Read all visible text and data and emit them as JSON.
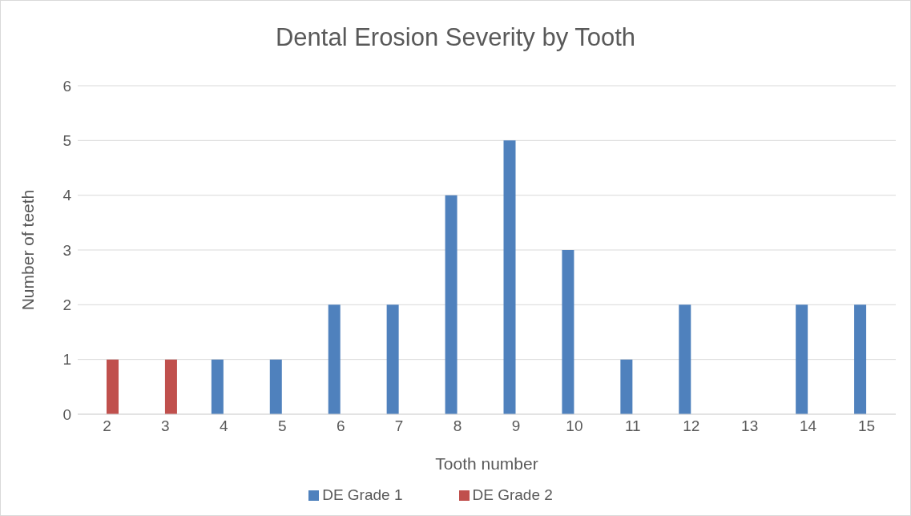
{
  "chart_data": {
    "type": "bar",
    "title": "Dental Erosion Severity by Tooth",
    "xlabel": "Tooth number",
    "ylabel": "Number of teeth",
    "categories": [
      "2",
      "3",
      "4",
      "5",
      "6",
      "7",
      "8",
      "9",
      "10",
      "11",
      "12",
      "13",
      "14",
      "15"
    ],
    "series": [
      {
        "name": "DE Grade 1",
        "color": "#4f81bd",
        "values": [
          0,
          0,
          1,
          1,
          2,
          2,
          4,
          5,
          3,
          1,
          2,
          0,
          2,
          2
        ]
      },
      {
        "name": "DE Grade 2",
        "color": "#c0504d",
        "values": [
          1,
          1,
          0,
          0,
          0,
          0,
          0,
          0,
          0,
          0,
          0,
          0,
          0,
          0
        ]
      }
    ],
    "ylim": [
      0,
      6
    ],
    "yticks": [
      0,
      1,
      2,
      3,
      4,
      5,
      6
    ],
    "grid": "y",
    "legend": "bottom"
  }
}
